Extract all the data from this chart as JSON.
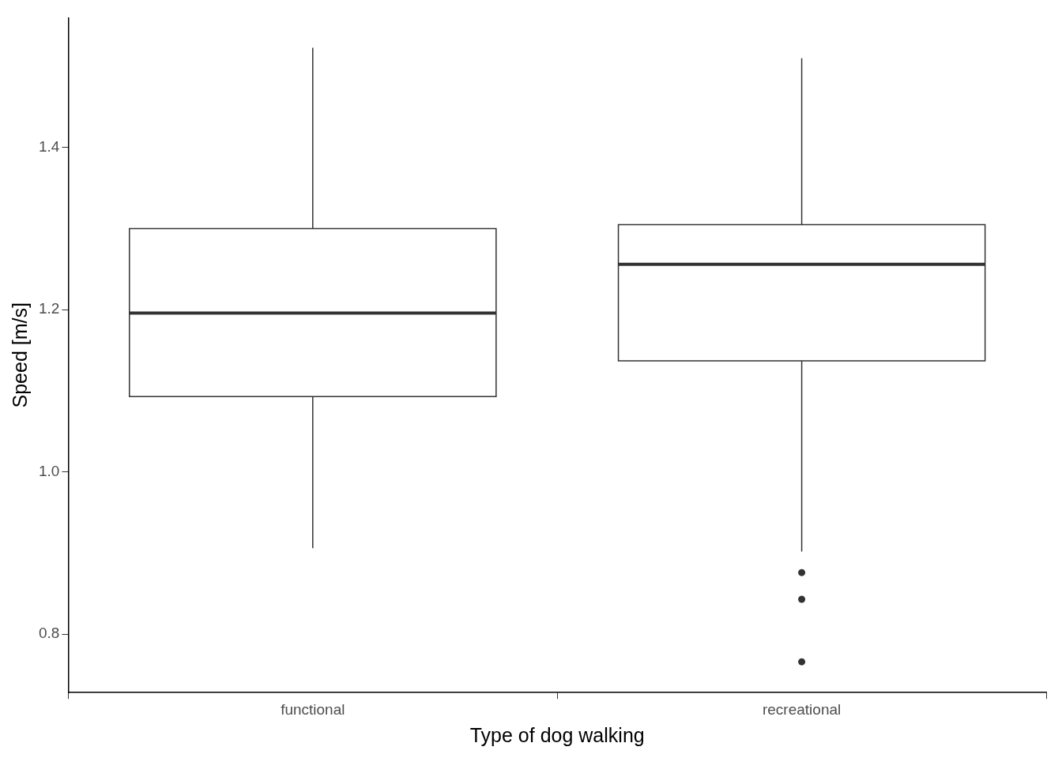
{
  "chart_data": {
    "type": "box",
    "xlabel": "Type of dog walking",
    "ylabel": "Speed [m/s]",
    "categories": [
      "functional",
      "recreational"
    ],
    "boxes": [
      {
        "low": 0.906,
        "q1": 1.093,
        "median": 1.196,
        "q3": 1.3,
        "high": 1.523
      },
      {
        "low": 0.902,
        "q1": 1.137,
        "median": 1.256,
        "q3": 1.305,
        "high": 1.51,
        "outliers": [
          0.876,
          0.843,
          0.766
        ]
      }
    ],
    "color": "#333333",
    "ylim": [
      0.728,
      1.56
    ],
    "yticks": [
      0.8,
      {
        "value": 1,
        "label": "1.0"
      },
      1.2,
      1.4
    ],
    "grid": false,
    "legend": false
  }
}
